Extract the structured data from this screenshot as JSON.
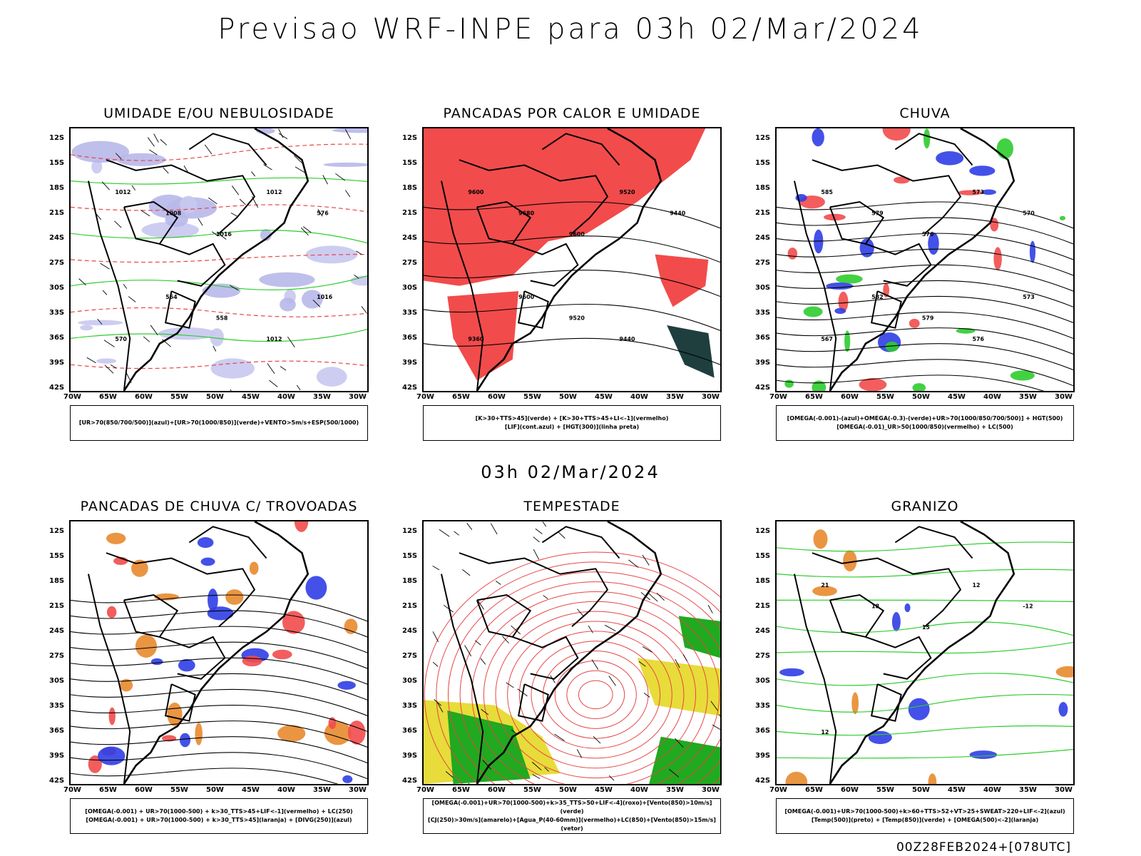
{
  "page": {
    "main_title": "Previsao WRF-INPE  para 03h 02/Mar/2024",
    "mid_title": "03h 02/Mar/2024",
    "footer": "00Z28FEB2024+[078UTC]"
  },
  "axes": {
    "lat_labels": [
      "12S",
      "15S",
      "18S",
      "21S",
      "24S",
      "27S",
      "30S",
      "33S",
      "36S",
      "39S",
      "42S"
    ],
    "lon_labels": [
      "70W",
      "65W",
      "60W",
      "55W",
      "50W",
      "45W",
      "40W",
      "35W",
      "30W"
    ]
  },
  "panels": [
    {
      "id": "umidade",
      "title": "UMIDADE E/OU NEBULOSIDADE",
      "legend": [
        "[UR>70(850/700/500)](azul)+[UR>70(1000/850)](verde)+VENTO>5m/s+ESP(500/1000)"
      ],
      "contour_labels": [
        "1012",
        "1008",
        "1016",
        "1012",
        "576",
        "570",
        "564",
        "558",
        "1012",
        "1016"
      ]
    },
    {
      "id": "pancadas-calor",
      "title": "PANCADAS POR CALOR E UMIDADE",
      "legend": [
        "[K>30+TTS>45](verde) + [K>30+TTS>45+LI<-1](vermelho)",
        "[LIF](cont.azul) + [HGT(300)](linha preta)"
      ],
      "contour_labels": [
        "9600",
        "9680",
        "9600",
        "9520",
        "9440",
        "9360",
        "9600",
        "9520",
        "9440"
      ]
    },
    {
      "id": "chuva",
      "title": "CHUVA",
      "legend": [
        "[OMEGA(-0.001)-(azul)+OMEGA(-0.3)-(verde)+UR>70(1000/850/700/500)] + HGT(500)",
        "[OMEGA(-0.01)_UR>50(1000/850)(vermelho) + LC(500)"
      ],
      "contour_labels": [
        "585",
        "579",
        "576",
        "573",
        "570",
        "567",
        "582",
        "579",
        "576",
        "573"
      ]
    },
    {
      "id": "pancadas-trovoadas",
      "title": "PANCADAS DE CHUVA C/ TROVOADAS",
      "legend": [
        "[OMEGA(-0.001) + UR>70(1000-500) + k>30_TTS>45+LIF<-1](vermelho) + LC(250)",
        "[OMEGA(-0.001) + UR>70(1000-500) + k>30_TTS>45](laranja) + [DIVG(250)](azul)"
      ],
      "contour_labels": []
    },
    {
      "id": "tempestade",
      "title": "TEMPESTADE",
      "legend": [
        "[OMEGA(-0.001)+UR>70(1000-500)+k>35_TTS>50+LIF<-4](roxo)+[Vento(850)>10m/s](verde)",
        "[CJ(250)>30m/s](amarelo)+[Agua_P(40-60mm)](vermelho)+LC(850)+[Vento(850)>15m/s](vetor)"
      ],
      "contour_labels": []
    },
    {
      "id": "granizo",
      "title": "GRANIZO",
      "legend": [
        "[OMEGA(-0.001)+UR>70(1000-500)+k>60+TTS>52+VT>25+SWEAT>220+LIF<-2](azul)",
        "[Temp(500)](preto) + [Temp(850)](verde) + [OMEGA(500)<-2](laranja)"
      ],
      "contour_labels": [
        "21",
        "18",
        "15",
        "12",
        "-12",
        "12"
      ]
    }
  ]
}
